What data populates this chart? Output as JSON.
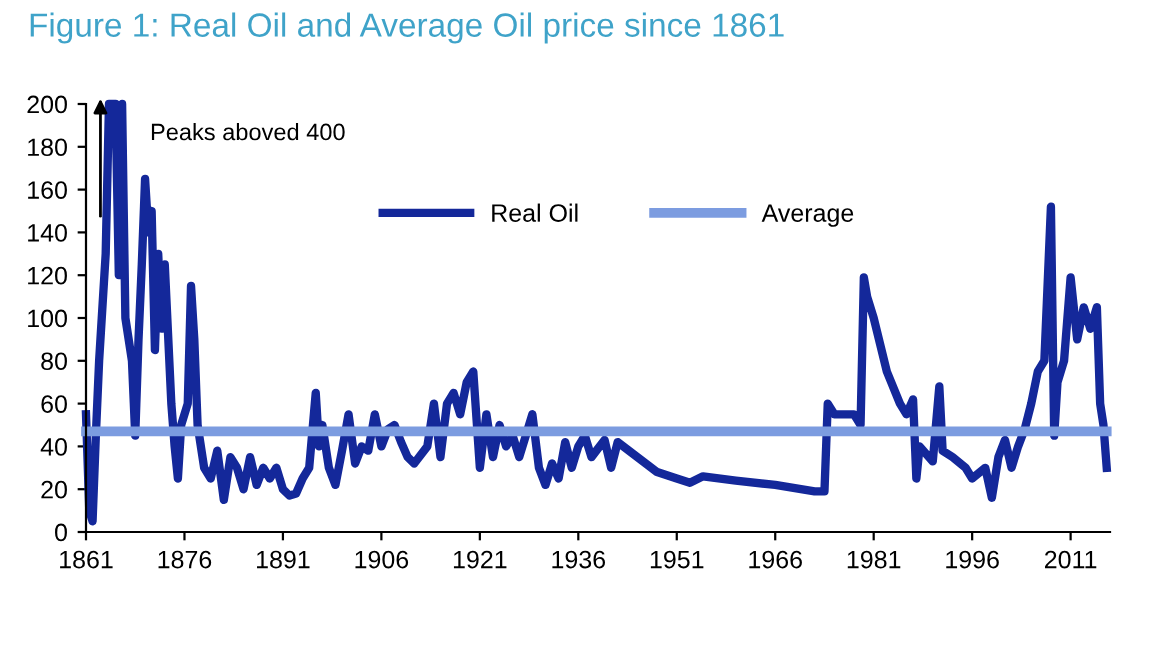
{
  "chart_data": {
    "type": "line",
    "title": "Figure 1: Real Oil and Average Oil price since 1861",
    "xlim": [
      1861,
      2017
    ],
    "xticks": [
      1861,
      1876,
      1891,
      1906,
      1921,
      1936,
      1951,
      1966,
      1981,
      1996,
      2011
    ],
    "ylim": [
      0,
      200
    ],
    "yticks": [
      0,
      20,
      40,
      60,
      80,
      100,
      120,
      140,
      160,
      180,
      200
    ],
    "grid": false,
    "legend": "top",
    "marker": "none",
    "line_style": "solid",
    "annotations": [
      "Peaks aboved 400"
    ],
    "series": [
      {
        "name": "Real Oil",
        "color": "#14289a",
        "x": [
          1861,
          1861.5,
          1862,
          1862.5,
          1863,
          1864,
          1864.5,
          1865.5,
          1866,
          1866.5,
          1867,
          1868,
          1868.5,
          1869,
          1869.5,
          1870,
          1870.5,
          1871,
          1871.5,
          1872,
          1872.5,
          1873,
          1874,
          1874.5,
          1875,
          1875.5,
          1876.5,
          1877,
          1877.5,
          1878,
          1879,
          1880,
          1881,
          1882,
          1883,
          1884,
          1885,
          1886,
          1887,
          1888,
          1889,
          1890,
          1891,
          1892,
          1893,
          1894,
          1895,
          1896,
          1896.5,
          1897,
          1898,
          1899,
          1900,
          1901,
          1902,
          1903,
          1904,
          1905,
          1906,
          1907,
          1908,
          1909,
          1910,
          1911,
          1913,
          1914,
          1915,
          1916,
          1917,
          1918,
          1919,
          1920,
          1921,
          1922,
          1923,
          1924,
          1925,
          1926,
          1927,
          1929,
          1930,
          1931,
          1932,
          1933,
          1934,
          1935,
          1936,
          1937,
          1938,
          1940,
          1941,
          1942,
          1945,
          1948,
          1951,
          1953,
          1955,
          1960,
          1966,
          1972,
          1973.5,
          1974,
          1975,
          1978,
          1979,
          1979.5,
          1980,
          1981,
          1983,
          1985,
          1986,
          1987,
          1987.5,
          1988,
          1990,
          1991,
          1991.5,
          1993,
          1995,
          1996,
          1998,
          1999,
          2000,
          2001,
          2002,
          2003,
          2004,
          2005,
          2006,
          2007,
          2008,
          2008.5,
          2009,
          2010,
          2011,
          2012,
          2013,
          2014,
          2015,
          2015.5,
          2016,
          2016.5
        ],
        "values": [
          55,
          10,
          5,
          45,
          80,
          130,
          200,
          200,
          120,
          200,
          100,
          80,
          45,
          90,
          125,
          165,
          140,
          150,
          85,
          130,
          95,
          125,
          60,
          40,
          25,
          50,
          60,
          115,
          90,
          50,
          30,
          25,
          38,
          15,
          35,
          30,
          20,
          35,
          22,
          30,
          25,
          30,
          20,
          17,
          18,
          25,
          30,
          65,
          40,
          50,
          30,
          22,
          38,
          55,
          32,
          40,
          38,
          55,
          40,
          48,
          50,
          42,
          35,
          32,
          40,
          60,
          35,
          60,
          65,
          55,
          70,
          75,
          30,
          55,
          35,
          50,
          40,
          45,
          35,
          55,
          30,
          22,
          32,
          25,
          42,
          30,
          40,
          45,
          35,
          43,
          30,
          42,
          35,
          28,
          25,
          23,
          26,
          24,
          22,
          19,
          19,
          60,
          55,
          55,
          50,
          119,
          110,
          100,
          75,
          60,
          55,
          62,
          25,
          40,
          33,
          68,
          38,
          35,
          30,
          25,
          30,
          16,
          35,
          43,
          30,
          40,
          48,
          60,
          75,
          80,
          152,
          45,
          70,
          80,
          119,
          90,
          105,
          95,
          105,
          60,
          50,
          30
        ]
      },
      {
        "name": "Average",
        "color": "#7c9ce0",
        "x": [
          1861,
          2016.5
        ],
        "values": [
          47,
          47
        ]
      }
    ]
  }
}
